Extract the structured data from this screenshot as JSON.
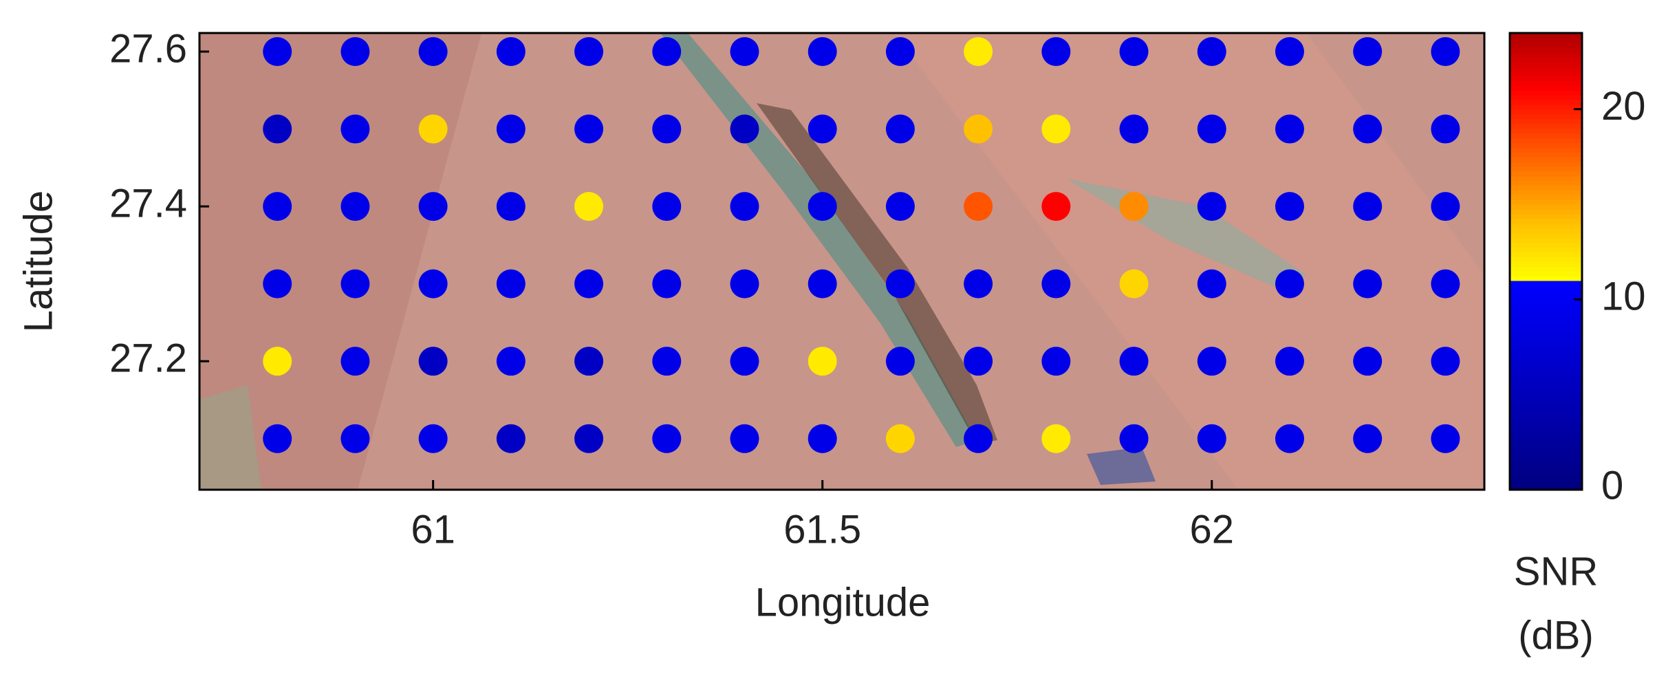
{
  "chart_data": {
    "type": "scatter",
    "xlabel": "Longitude",
    "ylabel": "Latitude",
    "x": [
      60.8,
      60.9,
      61,
      61.1,
      61.2,
      61.3,
      61.4,
      61.5,
      61.6,
      61.7,
      61.8,
      61.9,
      62,
      62.1,
      62.2,
      62.3,
      60.8,
      60.9,
      61,
      61.1,
      61.2,
      61.3,
      61.4,
      61.5,
      61.6,
      61.7,
      61.8,
      61.9,
      62,
      62.1,
      62.2,
      62.3,
      60.8,
      60.9,
      61,
      61.1,
      61.2,
      61.3,
      61.4,
      61.5,
      61.6,
      61.7,
      61.8,
      61.9,
      62,
      62.1,
      62.2,
      62.3,
      60.8,
      60.9,
      61,
      61.1,
      61.2,
      61.3,
      61.4,
      61.5,
      61.6,
      61.7,
      61.8,
      61.9,
      62,
      62.1,
      62.2,
      62.3,
      60.8,
      60.9,
      61,
      61.1,
      61.2,
      61.3,
      61.4,
      61.5,
      61.6,
      61.7,
      61.8,
      61.9,
      62,
      62.1,
      62.2,
      62.3,
      60.8,
      60.9,
      61,
      61.1,
      61.2,
      61.3,
      61.4,
      61.5,
      61.6,
      61.7,
      61.8,
      61.9,
      62,
      62.1,
      62.2,
      62.3
    ],
    "y": [
      27.6,
      27.6,
      27.6,
      27.6,
      27.6,
      27.6,
      27.6,
      27.6,
      27.6,
      27.6,
      27.6,
      27.6,
      27.6,
      27.6,
      27.6,
      27.6,
      27.5,
      27.5,
      27.5,
      27.5,
      27.5,
      27.5,
      27.5,
      27.5,
      27.5,
      27.5,
      27.5,
      27.5,
      27.5,
      27.5,
      27.5,
      27.5,
      27.4,
      27.4,
      27.4,
      27.4,
      27.4,
      27.4,
      27.4,
      27.4,
      27.4,
      27.4,
      27.4,
      27.4,
      27.4,
      27.4,
      27.4,
      27.4,
      27.3,
      27.3,
      27.3,
      27.3,
      27.3,
      27.3,
      27.3,
      27.3,
      27.3,
      27.3,
      27.3,
      27.3,
      27.3,
      27.3,
      27.3,
      27.3,
      27.2,
      27.2,
      27.2,
      27.2,
      27.2,
      27.2,
      27.2,
      27.2,
      27.2,
      27.2,
      27.2,
      27.2,
      27.2,
      27.2,
      27.2,
      27.2,
      27.1,
      27.1,
      27.1,
      27.1,
      27.1,
      27.1,
      27.1,
      27.1,
      27.1,
      27.1,
      27.1,
      27.1,
      27.1,
      27.1,
      27.1,
      27.1
    ],
    "values": [
      9,
      9,
      9,
      9,
      9,
      9,
      9,
      9,
      9,
      12,
      9,
      9,
      9,
      9,
      9,
      9,
      6,
      9,
      13,
      9,
      9,
      9,
      6,
      9,
      9,
      14,
      12,
      9,
      9,
      9,
      9,
      9,
      9,
      9,
      9,
      9,
      12,
      9,
      9,
      9,
      9,
      18,
      21,
      16,
      9,
      9,
      9,
      9,
      9,
      9,
      9,
      9,
      9,
      9,
      9,
      9,
      9,
      9,
      9,
      13,
      9,
      9,
      9,
      9,
      12,
      9,
      6,
      9,
      6,
      9,
      9,
      12,
      9,
      9,
      9,
      9,
      9,
      9,
      9,
      9,
      9,
      9,
      9,
      6,
      6,
      9,
      9,
      9,
      13,
      9,
      12,
      9,
      9,
      9,
      9,
      9
    ],
    "xlim": [
      60.7,
      62.35
    ],
    "ylim": [
      27.034,
      27.624
    ],
    "xticks": [
      61,
      61.5,
      62
    ],
    "yticks": [
      27.2,
      27.4,
      27.6
    ],
    "colorbar": {
      "label": [
        "SNR",
        "(dB)"
      ],
      "clim": [
        0,
        24
      ],
      "ticks": [
        0,
        10,
        20
      ],
      "colormap": [
        {
          "value": 0,
          "color": "#000080"
        },
        {
          "value": 11,
          "color": "#0000ff"
        },
        {
          "value": 11.01,
          "color": "#ffff00"
        },
        {
          "value": 14,
          "color": "#ffc000"
        },
        {
          "value": 17,
          "color": "#ff7000"
        },
        {
          "value": 21,
          "color": "#ff0000"
        },
        {
          "value": 24,
          "color": "#b00000"
        }
      ]
    }
  }
}
